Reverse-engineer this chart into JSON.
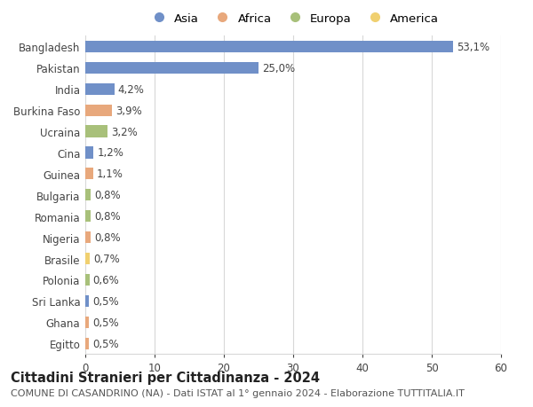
{
  "categories": [
    "Bangladesh",
    "Pakistan",
    "India",
    "Burkina Faso",
    "Ucraina",
    "Cina",
    "Guinea",
    "Bulgaria",
    "Romania",
    "Nigeria",
    "Brasile",
    "Polonia",
    "Sri Lanka",
    "Ghana",
    "Egitto"
  ],
  "values": [
    53.1,
    25.0,
    4.2,
    3.9,
    3.2,
    1.2,
    1.1,
    0.8,
    0.8,
    0.8,
    0.7,
    0.6,
    0.5,
    0.5,
    0.5
  ],
  "labels": [
    "53,1%",
    "25,0%",
    "4,2%",
    "3,9%",
    "3,2%",
    "1,2%",
    "1,1%",
    "0,8%",
    "0,8%",
    "0,8%",
    "0,7%",
    "0,6%",
    "0,5%",
    "0,5%",
    "0,5%"
  ],
  "continents": [
    "Asia",
    "Asia",
    "Asia",
    "Africa",
    "Europa",
    "Asia",
    "Africa",
    "Europa",
    "Europa",
    "Africa",
    "America",
    "Europa",
    "Asia",
    "Africa",
    "Africa"
  ],
  "continent_colors": {
    "Asia": "#7090c8",
    "Africa": "#e8a87c",
    "Europa": "#a8c07a",
    "America": "#f0d070"
  },
  "legend_order": [
    "Asia",
    "Africa",
    "Europa",
    "America"
  ],
  "xlim": [
    0,
    60
  ],
  "xticks": [
    0,
    10,
    20,
    30,
    40,
    50,
    60
  ],
  "title": "Cittadini Stranieri per Cittadinanza - 2024",
  "subtitle": "COMUNE DI CASANDRINO (NA) - Dati ISTAT al 1° gennaio 2024 - Elaborazione TUTTITALIA.IT",
  "background_color": "#ffffff",
  "grid_color": "#d8d8d8",
  "bar_height": 0.55,
  "title_fontsize": 10.5,
  "subtitle_fontsize": 8,
  "tick_fontsize": 8.5,
  "label_fontsize": 8.5,
  "legend_fontsize": 9.5
}
